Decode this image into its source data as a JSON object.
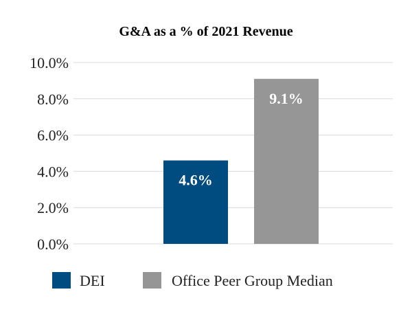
{
  "chart_data": {
    "type": "bar",
    "title": "G&A as a % of 2021 Revenue",
    "xlabel": "",
    "ylabel": "",
    "categories": [
      "DEI",
      "Office Peer Group Median"
    ],
    "values": [
      4.6,
      9.1
    ],
    "value_labels": [
      "4.6%",
      "9.1%"
    ],
    "colors": [
      "#004b7f",
      "#969696"
    ],
    "ylim": [
      0,
      10
    ],
    "yticks": [
      0,
      2,
      4,
      6,
      8,
      10
    ],
    "ytick_labels": [
      "0.0%",
      "2.0%",
      "4.0%",
      "6.0%",
      "8.0%",
      "10.0%"
    ],
    "grid": true,
    "legend_position": "bottom"
  }
}
